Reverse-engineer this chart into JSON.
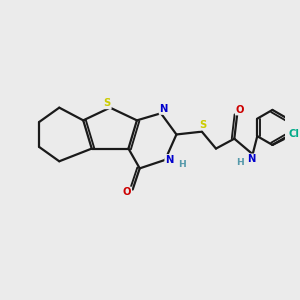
{
  "bg_color": "#ebebeb",
  "bond_color": "#1a1a1a",
  "atom_colors": {
    "S": "#cccc00",
    "N": "#0000cc",
    "O": "#cc0000",
    "Cl": "#00aa88",
    "H": "#5599aa",
    "C": "#1a1a1a"
  },
  "figsize": [
    3.0,
    3.0
  ],
  "dpi": 100
}
